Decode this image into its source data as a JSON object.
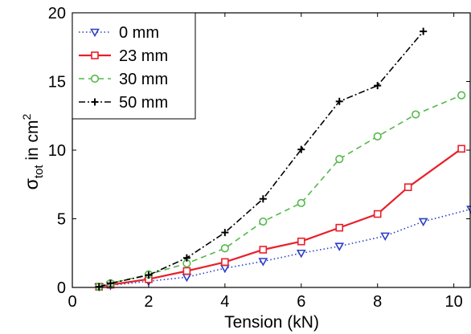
{
  "chart_data": {
    "type": "line",
    "xlabel": "Tension (kN)",
    "ylabel": {
      "sigma": "σ",
      "sub": "tot",
      "mid": " in cm",
      "sup": "2"
    },
    "xlim": [
      0,
      10.45
    ],
    "ylim": [
      0,
      20
    ],
    "xticks": [
      0,
      2,
      4,
      6,
      8,
      10
    ],
    "yticks": [
      0,
      5,
      10,
      15,
      20
    ],
    "grid": false,
    "legend_position": "top-left",
    "series": [
      {
        "name": "0 mm",
        "color": "#2d3fc7",
        "dash": "dotted",
        "marker": "triangle-down",
        "x": [
          0.7,
          1.0,
          2.0,
          3.0,
          4.0,
          5.0,
          6.0,
          7.0,
          8.2,
          9.2,
          10.45
        ],
        "y": [
          0.05,
          0.15,
          0.45,
          0.75,
          1.4,
          1.9,
          2.5,
          3.0,
          3.75,
          4.8,
          5.7
        ]
      },
      {
        "name": "23 mm",
        "color": "#e8202a",
        "dash": "solid",
        "marker": "square",
        "x": [
          0.7,
          1.0,
          2.0,
          3.0,
          4.0,
          5.0,
          6.0,
          7.0,
          8.0,
          8.8,
          10.2
        ],
        "y": [
          0.05,
          0.2,
          0.6,
          1.2,
          1.85,
          2.75,
          3.35,
          4.35,
          5.35,
          7.3,
          10.1
        ]
      },
      {
        "name": "30 mm",
        "color": "#54b94a",
        "dash": "dashed",
        "marker": "circle",
        "x": [
          0.7,
          1.0,
          2.0,
          3.0,
          4.0,
          5.0,
          6.0,
          7.0,
          8.0,
          9.0,
          10.2
        ],
        "y": [
          0.05,
          0.3,
          0.95,
          1.75,
          2.85,
          4.8,
          6.15,
          9.35,
          11.0,
          12.6,
          14.0
        ]
      },
      {
        "name": "50 mm",
        "color": "#000000",
        "dash": "dashdot",
        "marker": "plus",
        "x": [
          0.7,
          1.0,
          2.0,
          3.0,
          4.0,
          5.0,
          6.0,
          7.0,
          8.0,
          9.2
        ],
        "y": [
          0.05,
          0.3,
          0.9,
          2.15,
          4.0,
          6.45,
          10.05,
          13.55,
          14.7,
          18.65
        ]
      }
    ]
  }
}
